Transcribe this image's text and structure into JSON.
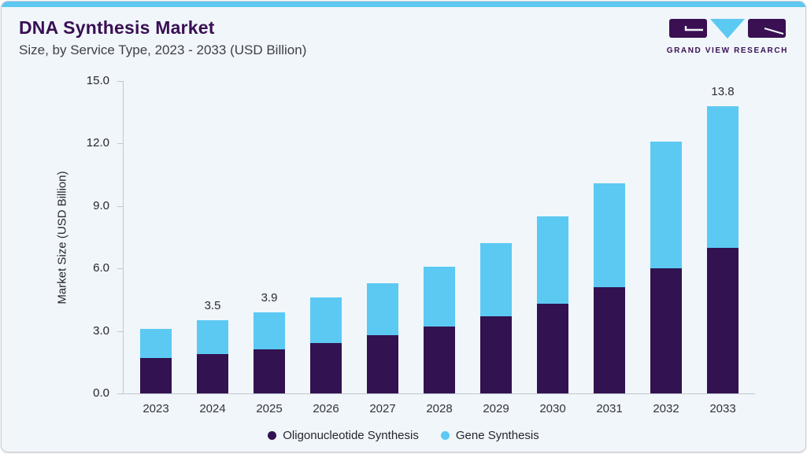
{
  "header": {
    "title": "DNA Synthesis Market",
    "subtitle": "Size, by Service Type, 2023 - 2033 (USD Billion)",
    "logo_text": "GRAND VIEW RESEARCH"
  },
  "chart_data": {
    "type": "bar",
    "stacked": true,
    "title": "DNA Synthesis Market",
    "subtitle": "Size, by Service Type, 2023 - 2033 (USD Billion)",
    "categories": [
      "2023",
      "2024",
      "2025",
      "2026",
      "2027",
      "2028",
      "2029",
      "2030",
      "2031",
      "2032",
      "2033"
    ],
    "series": [
      {
        "name": "Oligonucleotide Synthesis",
        "color": "#321250",
        "values": [
          1.7,
          1.9,
          2.1,
          2.4,
          2.8,
          3.2,
          3.7,
          4.3,
          5.1,
          6.0,
          7.0
        ]
      },
      {
        "name": "Gene Synthesis",
        "color": "#5cc9f3",
        "values": [
          1.4,
          1.6,
          1.8,
          2.2,
          2.5,
          2.9,
          3.5,
          4.2,
          5.0,
          6.1,
          6.8
        ]
      }
    ],
    "totals": [
      3.1,
      3.5,
      3.9,
      4.6,
      5.3,
      6.1,
      7.2,
      8.5,
      10.1,
      12.1,
      13.8
    ],
    "visible_total_labels": {
      "2024": "3.5",
      "2025": "3.9",
      "2033": "13.8"
    },
    "xlabel": "",
    "ylabel": "Market Size (USD Billion)",
    "ylim": [
      0,
      15
    ],
    "yticks": [
      "0.0",
      "3.0",
      "6.0",
      "9.0",
      "12.0",
      "15.0"
    ],
    "grid": false,
    "legend_position": "bottom"
  },
  "colors": {
    "top_strip": "#5ec8f0",
    "card_bg": "#f0f6fa",
    "card_border": "#c9ced6",
    "title": "#3a0f53",
    "subtitle": "#3f3f4a",
    "axis_text": "#26262e",
    "axis_line": "#c0c6cf",
    "oligo_bar": "#321250",
    "gene_bar": "#5cc9f3",
    "logo_purple": "#3a1053",
    "logo_blue": "#5cc9f3"
  }
}
